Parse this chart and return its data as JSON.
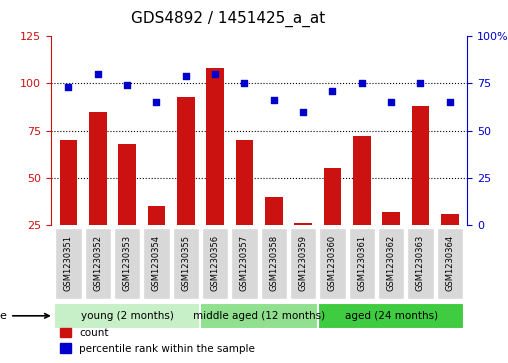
{
  "title": "GDS4892 / 1451425_a_at",
  "samples": [
    "GSM1230351",
    "GSM1230352",
    "GSM1230353",
    "GSM1230354",
    "GSM1230355",
    "GSM1230356",
    "GSM1230357",
    "GSM1230358",
    "GSM1230359",
    "GSM1230360",
    "GSM1230361",
    "GSM1230362",
    "GSM1230363",
    "GSM1230364"
  ],
  "counts": [
    70,
    85,
    68,
    35,
    93,
    108,
    70,
    40,
    26,
    55,
    72,
    32,
    88,
    31
  ],
  "percentiles": [
    73,
    80,
    74,
    65,
    79,
    80,
    75,
    66,
    60,
    71,
    75,
    65,
    75,
    65
  ],
  "groups": [
    {
      "label": "young (2 months)",
      "start": 0,
      "end": 5,
      "color": "#c8f0c8"
    },
    {
      "label": "middle aged (12 months)",
      "start": 5,
      "end": 9,
      "color": "#90e090"
    },
    {
      "label": "aged (24 months)",
      "start": 9,
      "end": 14,
      "color": "#40cc40"
    }
  ],
  "ylim_left": [
    25,
    125
  ],
  "ylim_right": [
    0,
    100
  ],
  "yticks_left": [
    25,
    50,
    75,
    100,
    125
  ],
  "yticks_right": [
    0,
    25,
    50,
    75,
    100
  ],
  "bar_color": "#cc1111",
  "scatter_color": "#0000cc",
  "sample_box_color": "#d8d8d8",
  "grid_dotted_vals": [
    50,
    75,
    100
  ]
}
